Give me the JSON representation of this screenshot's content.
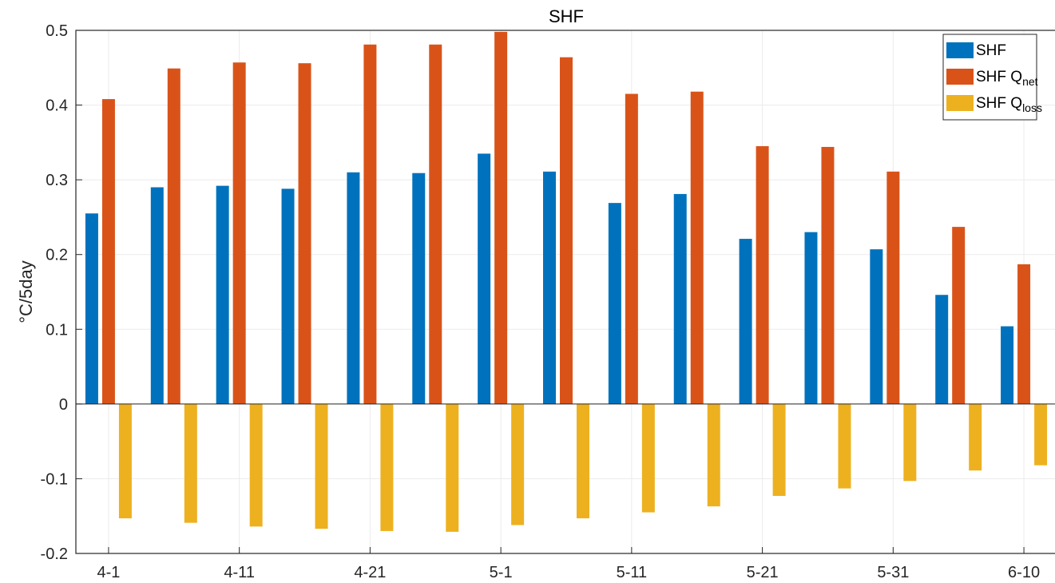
{
  "chart_data": {
    "type": "bar",
    "title": "SHF",
    "xlabel": "",
    "ylabel": "°C/5day",
    "ylim": [
      -0.2,
      0.5
    ],
    "yticks": [
      -0.2,
      -0.1,
      0,
      0.1,
      0.2,
      0.3,
      0.4,
      0.5
    ],
    "ytick_labels": [
      "-0.2",
      "-0.1",
      "0",
      "0.1",
      "0.2",
      "0.3",
      "0.4",
      "0.5"
    ],
    "categories": [
      "4-1",
      "4-6",
      "4-11",
      "4-16",
      "4-21",
      "4-26",
      "5-1",
      "5-6",
      "5-11",
      "5-16",
      "5-21",
      "5-26",
      "5-31",
      "6-5",
      "6-10"
    ],
    "xtick_labels": [
      "4-1",
      "4-11",
      "4-21",
      "5-1",
      "5-11",
      "5-21",
      "5-31",
      "6-10"
    ],
    "grid": true,
    "legend_position": "top-right",
    "series": [
      {
        "name": "SHF",
        "legend_main": "SHF",
        "legend_sub": "",
        "color": "#0072BD",
        "values": [
          0.255,
          0.29,
          0.292,
          0.288,
          0.31,
          0.309,
          0.335,
          0.311,
          0.269,
          0.281,
          0.221,
          0.23,
          0.207,
          0.146,
          0.104
        ]
      },
      {
        "name": "SHF Qnet",
        "legend_main": "SHF Q",
        "legend_sub": "net",
        "color": "#D95319",
        "values": [
          0.408,
          0.449,
          0.457,
          0.456,
          0.481,
          0.481,
          0.498,
          0.464,
          0.415,
          0.418,
          0.345,
          0.344,
          0.311,
          0.237,
          0.187
        ]
      },
      {
        "name": "SHF Qloss",
        "legend_main": "SHF Q",
        "legend_sub": "loss",
        "color": "#EDB120",
        "values": [
          -0.153,
          -0.159,
          -0.164,
          -0.167,
          -0.17,
          -0.171,
          -0.162,
          -0.153,
          -0.145,
          -0.137,
          -0.123,
          -0.113,
          -0.103,
          -0.089,
          -0.082
        ]
      }
    ]
  }
}
